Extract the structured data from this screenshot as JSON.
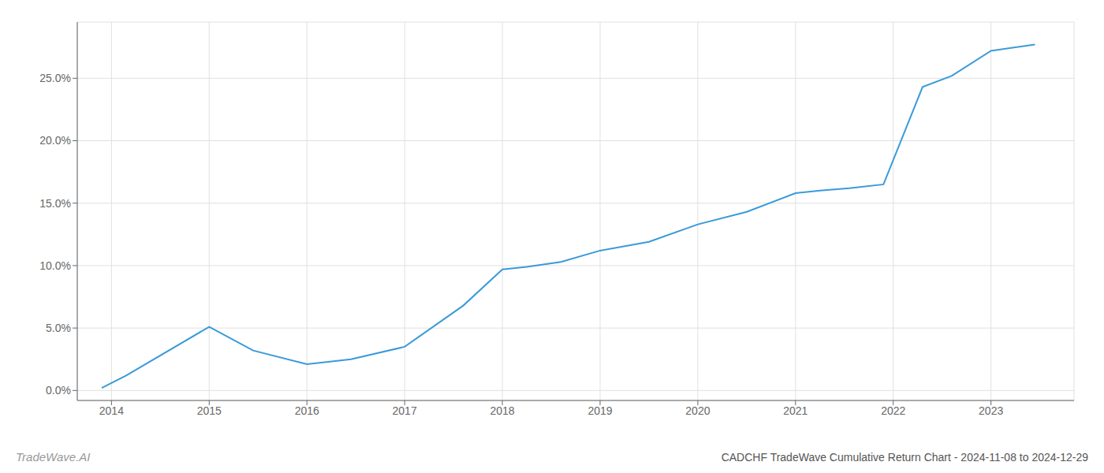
{
  "chart_data": {
    "type": "line",
    "title": "CADCHF TradeWave Cumulative Return Chart - 2024-11-08 to 2024-12-29",
    "annotations": [
      "TradeWave.AI"
    ],
    "x": [
      2013.9,
      2014.15,
      2015.0,
      2015.45,
      2016.0,
      2016.45,
      2017.0,
      2017.6,
      2018.0,
      2018.25,
      2018.6,
      2019.0,
      2019.5,
      2020.0,
      2020.5,
      2021.0,
      2021.25,
      2021.55,
      2021.9,
      2022.3,
      2022.6,
      2023.0,
      2023.45
    ],
    "values": [
      0.002,
      0.012,
      0.051,
      0.032,
      0.021,
      0.025,
      0.035,
      0.068,
      0.097,
      0.099,
      0.103,
      0.112,
      0.119,
      0.133,
      0.143,
      0.158,
      0.16,
      0.162,
      0.165,
      0.243,
      0.252,
      0.272,
      0.277
    ],
    "color": "#3a9ad9",
    "xlim": [
      2013.65,
      2023.85
    ],
    "xticks": [
      2014,
      2015,
      2016,
      2017,
      2018,
      2019,
      2020,
      2021,
      2022,
      2023
    ],
    "ylim": [
      -0.008,
      0.295
    ],
    "yticks": [
      {
        "value": 0.0,
        "label": "0.0%"
      },
      {
        "value": 0.05,
        "label": "5.0%"
      },
      {
        "value": 0.1,
        "label": "10.0%"
      },
      {
        "value": 0.15,
        "label": "15.0%"
      },
      {
        "value": 0.2,
        "label": "20.0%"
      },
      {
        "value": 0.25,
        "label": "25.0%"
      }
    ],
    "grid": true
  }
}
